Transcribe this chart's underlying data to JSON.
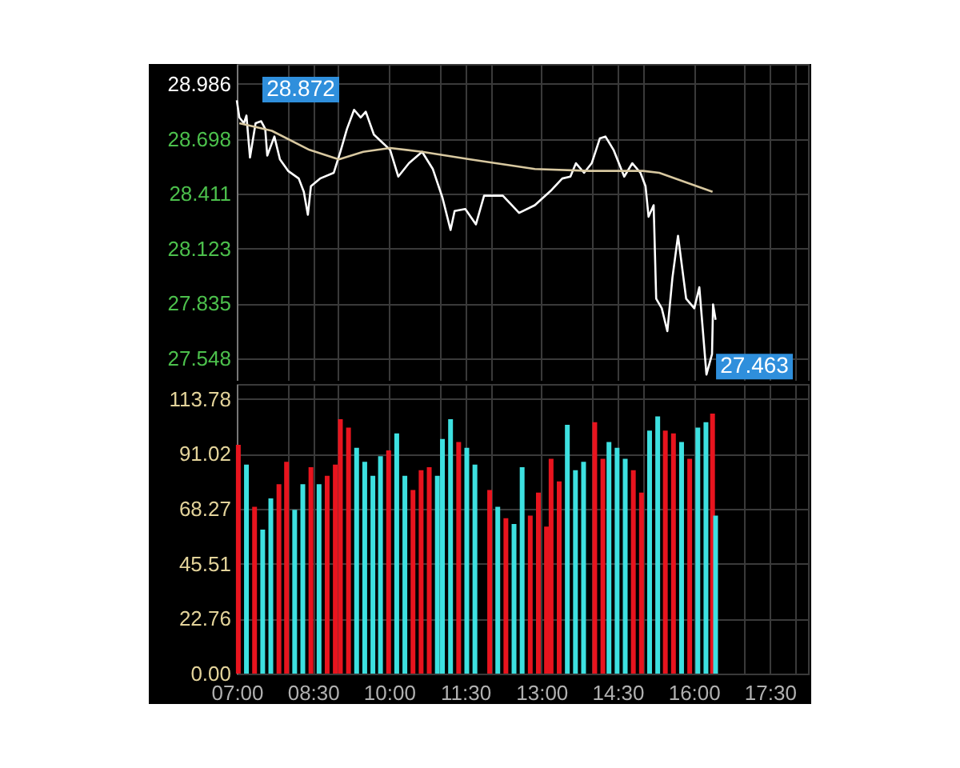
{
  "chart_data": [
    {
      "type": "line",
      "xlim": [
        7,
        18.25
      ],
      "ylim": [
        27.43,
        29.09
      ],
      "xticks": [
        7,
        8,
        8.5,
        9,
        10,
        11,
        11.5,
        12,
        13,
        14,
        14.5,
        15,
        16,
        17,
        17.5,
        18
      ],
      "yticks": [
        27.548,
        27.835,
        28.123,
        28.411,
        28.698,
        28.986
      ],
      "grid": true,
      "tick_labels": "y",
      "marker": "none",
      "series": [
        {
          "color": "#ffffff",
          "x": [
            7.0,
            7.05,
            7.14,
            7.19,
            7.26,
            7.37,
            7.48,
            7.56,
            7.6,
            7.74,
            7.85,
            8.01,
            8.22,
            8.32,
            8.4,
            8.46,
            8.64,
            8.91,
            9.04,
            9.17,
            9.31,
            9.44,
            9.54,
            9.7,
            9.86,
            10.02,
            10.18,
            10.39,
            10.65,
            10.86,
            11.05,
            11.21,
            11.29,
            11.5,
            11.71,
            11.87,
            12.24,
            12.56,
            12.87,
            13.2,
            13.41,
            13.57,
            13.68,
            13.84,
            13.99,
            14.15,
            14.26,
            14.42,
            14.63,
            14.79,
            14.95,
            15.05,
            15.11,
            15.21,
            15.26,
            15.37,
            15.48,
            15.58,
            15.69,
            15.85,
            16.01,
            16.11,
            16.25,
            16.36,
            16.38,
            16.43
          ],
          "values": [
            28.9,
            28.81,
            28.78,
            28.82,
            28.6,
            28.78,
            28.79,
            28.75,
            28.61,
            28.71,
            28.59,
            28.53,
            28.49,
            28.42,
            28.3,
            28.45,
            28.49,
            28.52,
            28.63,
            28.75,
            28.85,
            28.81,
            28.84,
            28.72,
            28.68,
            28.64,
            28.5,
            28.57,
            28.63,
            28.54,
            28.39,
            28.22,
            28.32,
            28.33,
            28.25,
            28.4,
            28.4,
            28.31,
            28.35,
            28.43,
            28.49,
            28.5,
            28.57,
            28.52,
            28.57,
            28.7,
            28.71,
            28.64,
            28.5,
            28.57,
            28.52,
            28.45,
            28.29,
            28.35,
            27.86,
            27.81,
            27.69,
            27.97,
            28.19,
            27.86,
            27.81,
            27.92,
            27.463,
            27.57,
            27.83,
            27.75
          ]
        },
        {
          "color": "#d8c8a0",
          "x": [
            7.05,
            7.69,
            8.43,
            9.01,
            9.49,
            10.02,
            10.65,
            11.6,
            12.87,
            13.94,
            15.0,
            15.32,
            15.85,
            16.37
          ],
          "values": [
            28.78,
            28.74,
            28.64,
            28.59,
            28.63,
            28.65,
            28.63,
            28.59,
            28.54,
            28.53,
            28.53,
            28.52,
            28.47,
            28.42
          ]
        }
      ],
      "annotations": [
        {
          "text": "28.872",
          "x": 7,
          "y": 28.872
        },
        {
          "text": "27.463",
          "x": 16.25,
          "y": 27.463
        }
      ]
    },
    {
      "type": "bar",
      "xlim": [
        7,
        18.25
      ],
      "ylim": [
        0,
        120
      ],
      "xticks": [
        {
          "value": 7,
          "label": "07:00"
        },
        {
          "value": 8,
          "label": null
        },
        {
          "value": 8.5,
          "label": "08:30"
        },
        {
          "value": 9,
          "label": null
        },
        {
          "value": 10,
          "label": "10:00"
        },
        {
          "value": 11,
          "label": null
        },
        {
          "value": 11.5,
          "label": "11:30"
        },
        {
          "value": 12,
          "label": null
        },
        {
          "value": 13,
          "label": "13:00"
        },
        {
          "value": 14,
          "label": null
        },
        {
          "value": 14.5,
          "label": "14:30"
        },
        {
          "value": 15,
          "label": null
        },
        {
          "value": 16,
          "label": "16:00"
        },
        {
          "value": 17,
          "label": null
        },
        {
          "value": 17.5,
          "label": "17:30"
        },
        {
          "value": 18,
          "label": null
        }
      ],
      "yticks": [
        {
          "value": 0,
          "label": "0.00"
        },
        22.76,
        45.51,
        68.27,
        91.02,
        113.78
      ],
      "grid": true,
      "x": [
        7.03,
        7.19,
        7.35,
        7.51,
        7.67,
        7.83,
        7.98,
        8.14,
        8.3,
        8.46,
        8.62,
        8.78,
        8.94,
        9.04,
        9.2,
        9.36,
        9.52,
        9.68,
        9.83,
        9.99,
        10.15,
        10.31,
        10.47,
        10.63,
        10.79,
        10.95,
        11.05,
        11.21,
        11.37,
        11.53,
        11.69,
        11.98,
        12.14,
        12.3,
        12.46,
        12.62,
        12.78,
        12.94,
        13.1,
        13.19,
        13.35,
        13.51,
        13.67,
        13.83,
        14.05,
        14.21,
        14.33,
        14.49,
        14.65,
        14.81,
        14.97,
        15.13,
        15.29,
        15.44,
        15.6,
        15.76,
        15.92,
        16.08,
        16.24,
        16.37,
        16.43
      ],
      "values": [
        94.8,
        86.6,
        69.1,
        59.7,
        72.6,
        78.5,
        87.8,
        67.9,
        78.5,
        85.5,
        78.5,
        82.0,
        86.6,
        105.4,
        101.9,
        93.6,
        87.8,
        82.0,
        90.1,
        92.5,
        99.5,
        82.0,
        76.1,
        84.3,
        85.5,
        82.0,
        97.2,
        105.4,
        96.0,
        93.6,
        86.6,
        76.1,
        69.1,
        64.4,
        62.0,
        85.5,
        65.5,
        75.0,
        60.9,
        89.0,
        79.6,
        103.1,
        84.3,
        87.8,
        104.2,
        89.0,
        96.0,
        93.6,
        89.0,
        84.3,
        75.0,
        100.7,
        106.6,
        100.7,
        99.5,
        96.0,
        89.0,
        101.9,
        104.2,
        107.7,
        65.5
      ],
      "colors": [
        "#e8141e",
        "#3de0e0",
        "#e8141e",
        "#3de0e0",
        "#3de0e0",
        "#e8141e",
        "#e8141e",
        "#3de0e0",
        "#3de0e0",
        "#e8141e",
        "#3de0e0",
        "#e8141e",
        "#e8141e",
        "#e8141e",
        "#e8141e",
        "#3de0e0",
        "#3de0e0",
        "#3de0e0",
        "#3de0e0",
        "#e8141e",
        "#3de0e0",
        "#3de0e0",
        "#e8141e",
        "#e8141e",
        "#e8141e",
        "#3de0e0",
        "#3de0e0",
        "#3de0e0",
        "#e8141e",
        "#3de0e0",
        "#3de0e0",
        "#e8141e",
        "#3de0e0",
        "#e8141e",
        "#3de0e0",
        "#3de0e0",
        "#e8141e",
        "#e8141e",
        "#e8141e",
        "#e8141e",
        "#e8141e",
        "#3de0e0",
        "#3de0e0",
        "#3de0e0",
        "#e8141e",
        "#e8141e",
        "#3de0e0",
        "#3de0e0",
        "#3de0e0",
        "#e8141e",
        "#e8141e",
        "#3de0e0",
        "#3de0e0",
        "#e8141e",
        "#e8141e",
        "#3de0e0",
        "#e8141e",
        "#3de0e0",
        "#3de0e0",
        "#e8141e",
        "#3de0e0"
      ]
    }
  ]
}
